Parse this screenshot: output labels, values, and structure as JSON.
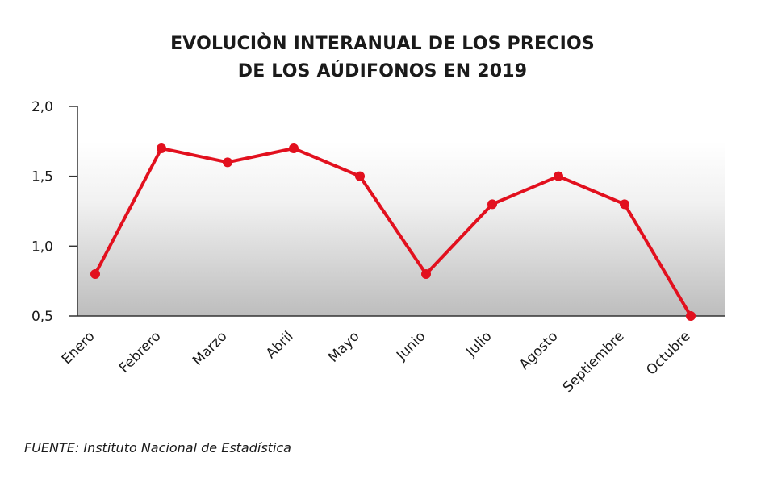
{
  "chart_data": {
    "type": "line",
    "title_lines": [
      "EVOLUCIÒN INTERANUAL DE LOS PRECIOS",
      "DE LOS AÚDIFONOS EN 2019"
    ],
    "categories": [
      "Enero",
      "Febrero",
      "Marzo",
      "Abril",
      "Mayo",
      "Junio",
      "Julio",
      "Agosto",
      "Septiembre",
      "Octubre"
    ],
    "values": [
      0.8,
      1.7,
      1.6,
      1.7,
      1.5,
      0.8,
      1.3,
      1.5,
      1.3,
      0.5
    ],
    "ylim": [
      0.5,
      2.0
    ],
    "yticks": [
      2.0,
      1.5,
      1.0,
      0.5
    ],
    "ytick_labels": [
      "2,0",
      "1,5",
      "1,0",
      "0,5"
    ],
    "grid": false,
    "colors": {
      "line": "#e2101e",
      "marker": "#e2101e"
    }
  },
  "source": {
    "prefix": "FUENTE:",
    "text": "Instituto Nacional de Estadística"
  }
}
